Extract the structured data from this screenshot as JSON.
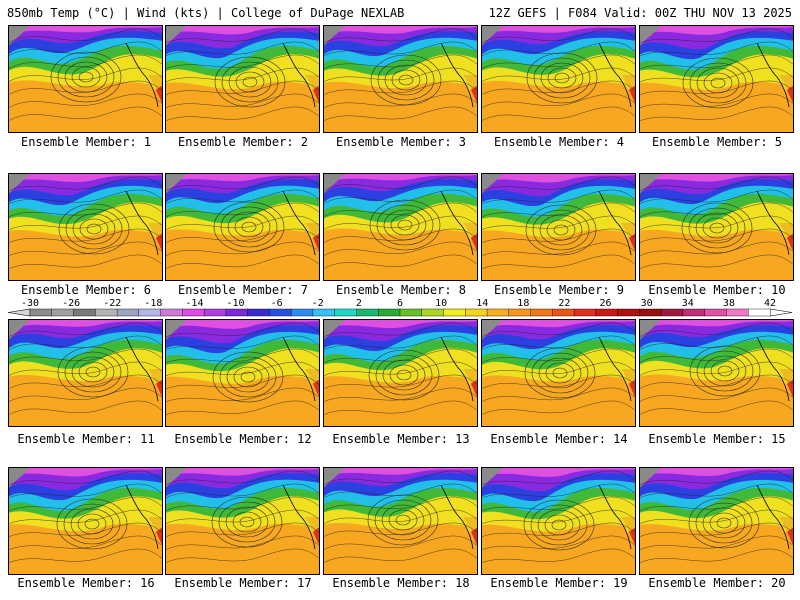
{
  "header": {
    "left": "850mb Temp (°C) | Wind (kts) | College of DuPage NEXLAB",
    "right": "12Z GEFS | F084 Valid: 00Z THU NOV 13 2025"
  },
  "colorbar": {
    "labels": [
      "-30",
      "-26",
      "-22",
      "-18",
      "-14",
      "-10",
      "-6",
      "-2",
      "2",
      "6",
      "10",
      "14",
      "18",
      "22",
      "26",
      "30",
      "34",
      "38",
      "42"
    ],
    "colors": [
      "#8c8c8c",
      "#a0a0a0",
      "#7a7a7a",
      "#b4b4b4",
      "#9aa5c0",
      "#b6b6e8",
      "#d07ad8",
      "#e04ae8",
      "#b040e0",
      "#7a2ad8",
      "#3a2ad0",
      "#2850e0",
      "#2f8df0",
      "#34c4f4",
      "#20d8c8",
      "#18b870",
      "#2aa838",
      "#66c028",
      "#a8d820",
      "#eef020",
      "#f8d420",
      "#f8b020",
      "#f89820",
      "#f07818",
      "#e85818",
      "#e03020",
      "#c81818",
      "#b01010",
      "#981010",
      "#a01840",
      "#c03078",
      "#e050a8",
      "#f078c8",
      "#ffffff"
    ],
    "arrow_colors": {
      "low": "#d8d8d8",
      "high": "#ffffff"
    }
  },
  "member_label_prefix": "Ensemble Member:",
  "members": [
    {
      "n": "1"
    },
    {
      "n": "2"
    },
    {
      "n": "3"
    },
    {
      "n": "4"
    },
    {
      "n": "5"
    },
    {
      "n": "6"
    },
    {
      "n": "7"
    },
    {
      "n": "8"
    },
    {
      "n": "9"
    },
    {
      "n": "10"
    },
    {
      "n": "11"
    },
    {
      "n": "12"
    },
    {
      "n": "13"
    },
    {
      "n": "14"
    },
    {
      "n": "15"
    },
    {
      "n": "16"
    },
    {
      "n": "17"
    },
    {
      "n": "18"
    },
    {
      "n": "19"
    },
    {
      "n": "20"
    }
  ],
  "map_colors": {
    "frame": "#000000",
    "grey": "#8a8a8a",
    "magenta": "#e050e0",
    "purple": "#8a2ae0",
    "blue": "#2a40e0",
    "cyan": "#22c0e8",
    "green": "#40b838",
    "yellow": "#f0e020",
    "orange": "#f8a820",
    "red": "#e03020",
    "contour": "#202020"
  }
}
